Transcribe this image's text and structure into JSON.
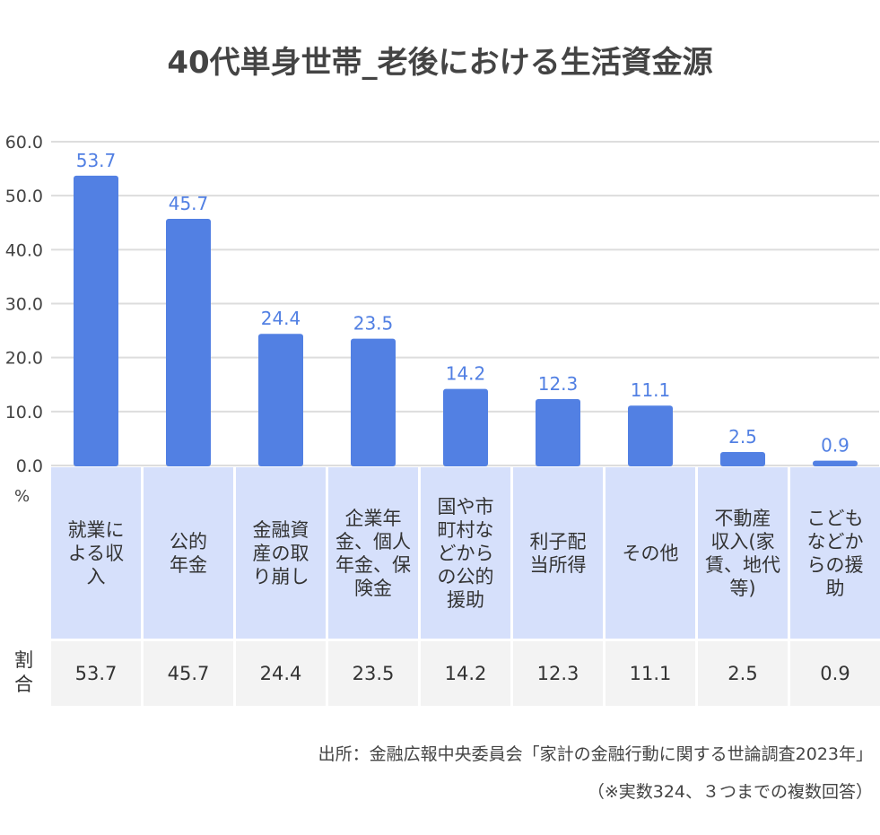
{
  "chart_data": {
    "type": "bar",
    "title": "40代単身世帯_老後における生活資金源",
    "categories": [
      "就業に\nよる収\n入",
      "公的\n年金",
      "金融資\n産の取\nり崩し",
      "企業年\n金、個人\n年金、保\n険金",
      "国や市\n町村な\nどから\nの公的\n援助",
      "利子配\n当所得",
      "その他",
      "不動産\n収入(家\n賃、地代\n等)",
      "こども\nなどか\nらの援\n助"
    ],
    "values": [
      53.7,
      45.7,
      24.4,
      23.5,
      14.2,
      12.3,
      11.1,
      2.5,
      0.9
    ],
    "ylabel": "%",
    "ylim": [
      0,
      60
    ],
    "yticks": [
      "0.0",
      "10.0",
      "20.0",
      "30.0",
      "40.0",
      "50.0",
      "60.0"
    ],
    "grid": true,
    "bar_color": "#5280e3",
    "label_color": "#5280e3",
    "table_row_label": "割合"
  },
  "source": {
    "line1": "出所：金融広報中央委員会「家計の金融行動に関する世論調査2023年」",
    "line2": "（※実数324、３つまでの複数回答）"
  }
}
